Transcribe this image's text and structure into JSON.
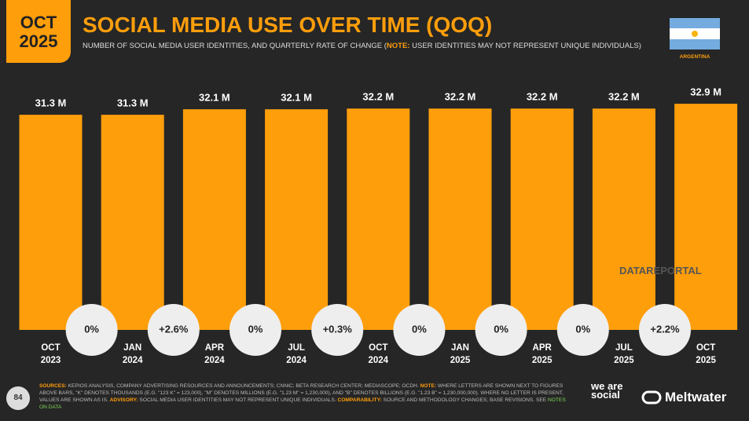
{
  "badge": {
    "month": "OCT",
    "year": "2025"
  },
  "header": {
    "title": "SOCIAL MEDIA USE OVER TIME (QOQ)",
    "subtitle": [
      "NUMBER OF SOCIAL MEDIA USER IDENTITIES, AND QUARTERLY RATE OF CHANGE (",
      "NOTE:",
      "USER IDENTITIES MAY NOT REPRESENT UNIQUE INDIVIDUALS)"
    ],
    "country": "ARGENTINA"
  },
  "chart_data": {
    "type": "bar",
    "categories": [
      "OCT 2023",
      "JAN 2024",
      "APR 2024",
      "JUL 2024",
      "OCT 2024",
      "JAN 2025",
      "APR 2025",
      "JUL 2025",
      "OCT 2025"
    ],
    "values": [
      31.3,
      31.3,
      32.1,
      32.1,
      32.2,
      32.2,
      32.2,
      32.2,
      32.9
    ],
    "value_labels": [
      "31.3 M",
      "31.3 M",
      "32.1 M",
      "32.1 M",
      "32.2 M",
      "32.2 M",
      "32.2 M",
      "32.2 M",
      "32.9 M"
    ],
    "color": "#ff9e0b",
    "changes": {
      "values": [
        0,
        2.6,
        0,
        0.3,
        0,
        0,
        0,
        2.2
      ],
      "value_labels": [
        "0%",
        "+2.6%",
        "0%",
        "+0.3%",
        "0%",
        "0%",
        "0%",
        "+2.2%"
      ]
    }
  },
  "watermark": "DATAREPORTAL",
  "footer": {
    "page": "84",
    "segments": [
      "SOURCES:",
      "KEPIOS ANALYSIS, COMPANY ADVERTISING RESOURCES AND ANNOUNCEMENTS; CNNIC; BETA RESEARCH CENTER; MEDIASCOPE; OCDH.",
      "NOTE:",
      "WHERE LETTERS ARE SHOWN NEXT TO FIGURES ABOVE BARS, \"K\" DENOTES THOUSANDS (E.G. \"123 K\" = 123,000), \"M\" DENOTES MILLIONS (E.G. \"1.23 M\" = 1,230,000), AND \"B\" DENOTES BILLIONS (E.G. \"1.23 B\" = 1,230,000,000). WHERE NO LETTER IS PRESENT, VALUES ARE SHOWN AS IS.",
      "ADVISORY:",
      "SOCIAL MEDIA USER IDENTITIES MAY NOT REPRESENT UNIQUE INDIVIDUALS.",
      "COMPARABILITY:",
      "SOURCE AND METHODOLOGY CHANGES; BASE REVISIONS. SEE",
      "NOTES ON DATA"
    ],
    "logos": [
      "we are social",
      "Meltwater"
    ]
  }
}
